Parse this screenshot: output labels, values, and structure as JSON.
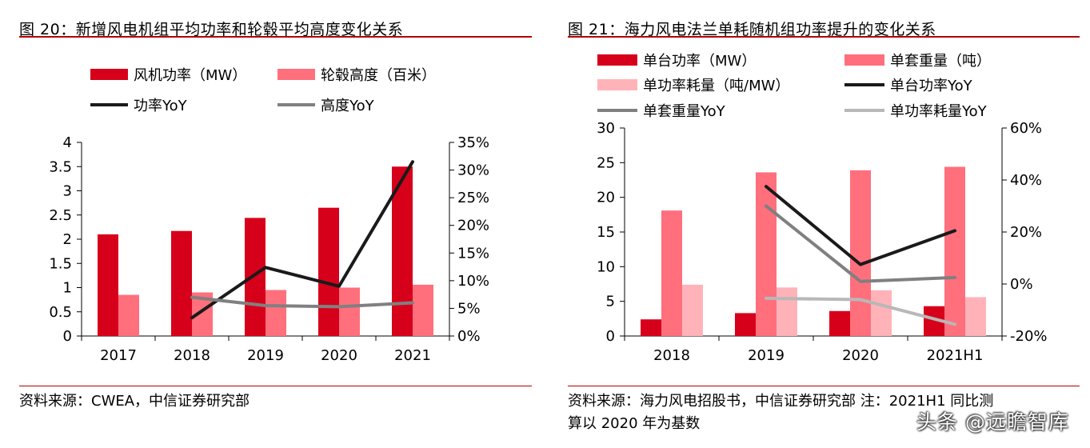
{
  "colors": {
    "rule": "#b30000",
    "power": "#d7001a",
    "height": "#ff6f7c",
    "heavy_red": "#d7001a",
    "mid_pink": "#ff6f7c",
    "light_pink": "#ffb3b8",
    "black_line": "#1a1a1a",
    "grey_line": "#808080",
    "light_grey_line": "#b8b8b8"
  },
  "left": {
    "title": "图 20：新增风电机组平均功率和轮毂平均高度变化关系",
    "source": "资料来源：CWEA，中信证券研究部"
  },
  "right": {
    "title": "图 21：海力风电法兰单耗随机组功率提升的变化关系",
    "source_line1": "资料来源：海力风电招股书，中信证券研究部    注：2021H1 同比测",
    "source_line2": "算以 2020 年为基数"
  },
  "watermark": "头条 @远瞻智库",
  "chart_data": [
    {
      "type": "bar",
      "categories": [
        "2017",
        "2018",
        "2019",
        "2020",
        "2021"
      ],
      "series": [
        {
          "name": "风机功率（MW）",
          "type": "bar",
          "axis": "left",
          "values": [
            2.1,
            2.17,
            2.44,
            2.65,
            3.5
          ],
          "color": "#d7001a"
        },
        {
          "name": "轮毂高度（百米）",
          "type": "bar",
          "axis": "left",
          "values": [
            0.85,
            0.9,
            0.95,
            1.0,
            1.06
          ],
          "color": "#ff6f7c"
        },
        {
          "name": "功率YoY",
          "type": "line",
          "axis": "right",
          "values": [
            null,
            3.3,
            12.4,
            9.0,
            31.5
          ],
          "color": "#1a1a1a"
        },
        {
          "name": "高度YoY",
          "type": "line",
          "axis": "right",
          "values": [
            null,
            7.0,
            5.5,
            5.3,
            6.0
          ],
          "color": "#808080"
        }
      ],
      "y_left": {
        "min": 0,
        "max": 4,
        "ticks": [
          "0",
          "0.5",
          "1",
          "1.5",
          "2",
          "2.5",
          "3",
          "3.5",
          "4"
        ]
      },
      "y_right": {
        "min": 0,
        "max": 35,
        "ticks": [
          "0%",
          "5%",
          "10%",
          "15%",
          "20%",
          "25%",
          "30%",
          "35%"
        ]
      },
      "legend_position": "top"
    },
    {
      "type": "bar",
      "categories": [
        "2018",
        "2019",
        "2020",
        "2021H1"
      ],
      "series": [
        {
          "name": "单台功率（MW）",
          "type": "bar",
          "axis": "left",
          "values": [
            2.4,
            3.3,
            3.6,
            4.3
          ],
          "color": "#d7001a"
        },
        {
          "name": "单套重量（吨）",
          "type": "bar",
          "axis": "left",
          "values": [
            18.1,
            23.6,
            23.9,
            24.4
          ],
          "color": "#ff6f7c"
        },
        {
          "name": "单功率耗量（吨/MW）",
          "type": "bar",
          "axis": "left",
          "values": [
            7.4,
            7.0,
            6.6,
            5.6
          ],
          "color": "#ffb3b8"
        },
        {
          "name": "单台功率YoY",
          "type": "line",
          "axis": "right",
          "values": [
            null,
            37.5,
            7.5,
            20.5
          ],
          "color": "#1a1a1a"
        },
        {
          "name": "单套重量YoY",
          "type": "line",
          "axis": "right",
          "values": [
            null,
            30.0,
            1.0,
            2.5
          ],
          "color": "#808080"
        },
        {
          "name": "单功率耗量YoY",
          "type": "line",
          "axis": "right",
          "values": [
            null,
            -5.5,
            -6.0,
            -15.5
          ],
          "color": "#b8b8b8"
        }
      ],
      "y_left": {
        "min": 0,
        "max": 30,
        "ticks": [
          "0",
          "5",
          "10",
          "15",
          "20",
          "25",
          "30"
        ]
      },
      "y_right": {
        "min": -20,
        "max": 60,
        "ticks": [
          "-20%",
          "0%",
          "20%",
          "40%",
          "60%"
        ]
      },
      "legend_position": "top"
    }
  ]
}
